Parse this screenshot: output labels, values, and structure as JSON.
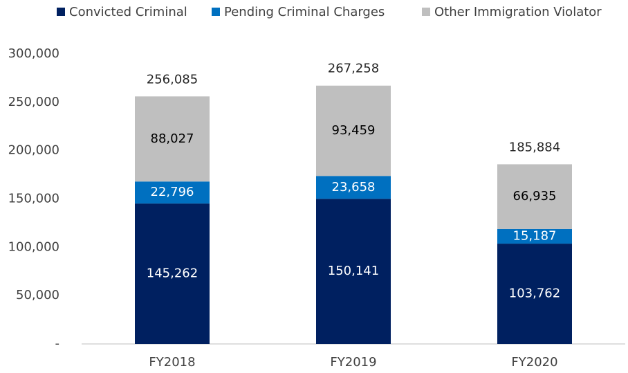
{
  "chart_data": {
    "type": "stacked_bar",
    "categories": [
      "FY2018",
      "FY2019",
      "FY2020"
    ],
    "series": [
      {
        "name": "Convicted Criminal",
        "color": "#002060",
        "values": [
          145262,
          150141,
          103762
        ],
        "value_labels": [
          "145,262",
          "150,141",
          "103,762"
        ]
      },
      {
        "name": "Pending Criminal Charges",
        "color": "#0070c0",
        "values": [
          22796,
          23658,
          15187
        ],
        "value_labels": [
          "22,796",
          "23,658",
          "15,187"
        ]
      },
      {
        "name": "Other Immigration Violator",
        "color": "#bfbfbf",
        "values": [
          88027,
          93459,
          66935
        ],
        "value_labels": [
          "88,027",
          "93,459",
          "66,935"
        ]
      }
    ],
    "totals": [
      256085,
      267258,
      185884
    ],
    "totals_labels": [
      "256,085",
      "267,258",
      "185,884"
    ],
    "ylim": [
      0,
      300000
    ],
    "yticks": [
      {
        "value": 0,
        "label": "-"
      },
      {
        "value": 50000,
        "label": "50,000"
      },
      {
        "value": 100000,
        "label": "100,000"
      },
      {
        "value": 150000,
        "label": "150,000"
      },
      {
        "value": 200000,
        "label": "200,000"
      },
      {
        "value": 250000,
        "label": "250,000"
      },
      {
        "value": 300000,
        "label": "300,000"
      }
    ],
    "legend": "top",
    "grid": false
  }
}
